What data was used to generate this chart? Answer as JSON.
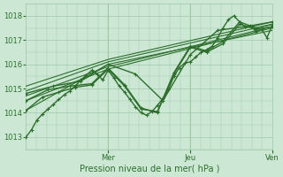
{
  "xlabel": "Pression niveau de la mer( hPa )",
  "ylim": [
    1012.5,
    1018.5
  ],
  "yticks": [
    1013,
    1014,
    1015,
    1016,
    1017,
    1018
  ],
  "bg_color": "#cce8d4",
  "grid_color": "#a0c8a8",
  "line_color": "#2d6e2d",
  "day_labels": [
    "Mer",
    "Jeu",
    "Ven"
  ],
  "day_positions": [
    0.333,
    0.667,
    1.0
  ],
  "series": [
    {
      "x": [
        0.0,
        0.022,
        0.044,
        0.067,
        0.089,
        0.111,
        0.133,
        0.156,
        0.178,
        0.2,
        0.222,
        0.244,
        0.267,
        0.289,
        0.311,
        0.333,
        0.356,
        0.378,
        0.4,
        0.422,
        0.444,
        0.467,
        0.489,
        0.511,
        0.533,
        0.556,
        0.578,
        0.6,
        0.622,
        0.644,
        0.667,
        0.689,
        0.711,
        0.733,
        0.756,
        0.778,
        0.8,
        0.822,
        0.844,
        0.867,
        0.889,
        0.911,
        0.933,
        0.956,
        0.978,
        1.0
      ],
      "y": [
        1013.0,
        1013.3,
        1013.7,
        1013.95,
        1014.15,
        1014.35,
        1014.55,
        1014.75,
        1014.9,
        1015.1,
        1015.35,
        1015.55,
        1015.75,
        1015.6,
        1015.35,
        1015.75,
        1015.45,
        1015.1,
        1014.85,
        1014.55,
        1014.25,
        1014.0,
        1013.9,
        1014.05,
        1014.3,
        1014.6,
        1014.95,
        1015.5,
        1015.85,
        1016.05,
        1016.1,
        1016.3,
        1016.5,
        1016.6,
        1016.75,
        1017.1,
        1017.5,
        1017.85,
        1018.0,
        1017.75,
        1017.55,
        1017.6,
        1017.35,
        1017.45,
        1017.1,
        1017.6
      ],
      "lw": 1.0,
      "ms": 2.0,
      "marker": "D"
    },
    {
      "x": [
        0.0,
        0.333,
        1.0
      ],
      "y": [
        1014.1,
        1016.0,
        1017.4
      ],
      "lw": 0.8,
      "ms": 0,
      "marker": "none"
    },
    {
      "x": [
        0.0,
        0.333,
        1.0
      ],
      "y": [
        1014.5,
        1015.8,
        1017.5
      ],
      "lw": 0.8,
      "ms": 0,
      "marker": "none"
    },
    {
      "x": [
        0.0,
        0.333,
        1.0
      ],
      "y": [
        1014.7,
        1015.9,
        1017.55
      ],
      "lw": 0.8,
      "ms": 0,
      "marker": "none"
    },
    {
      "x": [
        0.0,
        0.333,
        1.0
      ],
      "y": [
        1014.9,
        1016.1,
        1017.65
      ],
      "lw": 0.8,
      "ms": 0,
      "marker": "none"
    },
    {
      "x": [
        0.0,
        0.333,
        1.0
      ],
      "y": [
        1015.1,
        1016.2,
        1017.75
      ],
      "lw": 0.8,
      "ms": 0,
      "marker": "none"
    },
    {
      "x": [
        0.0,
        0.067,
        0.133,
        0.2,
        0.267,
        0.333,
        0.4,
        0.467,
        0.533,
        0.6,
        0.667,
        0.733,
        0.8,
        0.867,
        0.933,
        1.0
      ],
      "y": [
        1014.1,
        1014.65,
        1014.85,
        1015.05,
        1015.15,
        1015.8,
        1015.1,
        1014.15,
        1014.05,
        1015.6,
        1016.7,
        1016.5,
        1016.85,
        1017.65,
        1017.45,
        1017.55
      ],
      "lw": 1.0,
      "ms": 2.0,
      "marker": "D"
    },
    {
      "x": [
        0.0,
        0.089,
        0.178,
        0.267,
        0.333,
        0.4,
        0.467,
        0.533,
        0.6,
        0.667,
        0.733,
        0.8,
        0.867,
        0.933,
        1.0
      ],
      "y": [
        1014.5,
        1014.95,
        1015.1,
        1015.2,
        1015.85,
        1015.15,
        1014.2,
        1014.0,
        1015.65,
        1016.75,
        1016.55,
        1016.95,
        1017.75,
        1017.5,
        1017.65
      ],
      "lw": 1.0,
      "ms": 2.0,
      "marker": "D"
    },
    {
      "x": [
        0.0,
        0.111,
        0.222,
        0.333,
        0.444,
        0.556,
        0.667,
        0.778,
        0.889,
        1.0
      ],
      "y": [
        1014.8,
        1015.1,
        1015.3,
        1016.0,
        1015.6,
        1014.5,
        1016.4,
        1017.4,
        1017.55,
        1017.75
      ],
      "lw": 1.0,
      "ms": 2.0,
      "marker": "D"
    }
  ]
}
